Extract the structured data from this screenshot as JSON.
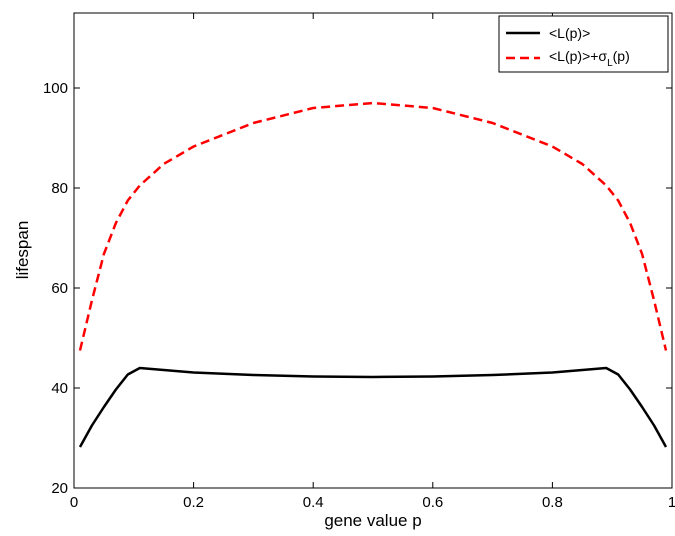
{
  "chart_data": {
    "type": "line",
    "title": "",
    "xlabel": "gene value p",
    "ylabel": "lifespan",
    "xlim": [
      0,
      1
    ],
    "ylim": [
      20,
      115
    ],
    "xticks": [
      0,
      0.2,
      0.4,
      0.6,
      0.8,
      1
    ],
    "xtick_labels": [
      "0",
      "0.2",
      "0.4",
      "0.6",
      "0.8",
      "1"
    ],
    "yticks": [
      20,
      40,
      60,
      80,
      100
    ],
    "ytick_labels": [
      "20",
      "40",
      "60",
      "80",
      "100"
    ],
    "grid": false,
    "legend_position": "top-right",
    "series": [
      {
        "name": "<L(p)>",
        "color": "#000000",
        "style": "solid",
        "x": [
          0.01,
          0.03,
          0.05,
          0.07,
          0.09,
          0.11,
          0.15,
          0.2,
          0.3,
          0.4,
          0.5,
          0.6,
          0.7,
          0.8,
          0.85,
          0.89,
          0.91,
          0.93,
          0.95,
          0.97,
          0.99
        ],
        "y": [
          28.2,
          32.5,
          36.2,
          39.7,
          42.7,
          44.0,
          43.6,
          43.1,
          42.6,
          42.3,
          42.2,
          42.3,
          42.6,
          43.1,
          43.6,
          44.0,
          42.7,
          39.7,
          36.2,
          32.5,
          28.2
        ]
      },
      {
        "name": "<L(p)>+σ_L(p)",
        "legend_main": "<L(p)>+σ",
        "legend_sub": "L",
        "legend_tail": "(p)",
        "color": "#ff0000",
        "style": "dashed",
        "x": [
          0.01,
          0.03,
          0.05,
          0.07,
          0.09,
          0.11,
          0.15,
          0.2,
          0.3,
          0.4,
          0.5,
          0.6,
          0.7,
          0.8,
          0.85,
          0.89,
          0.91,
          0.93,
          0.95,
          0.97,
          0.99
        ],
        "y": [
          47.5,
          57.5,
          66.8,
          73.0,
          77.5,
          80.5,
          84.8,
          88.3,
          93.0,
          96.0,
          97.0,
          96.0,
          93.0,
          88.3,
          84.8,
          80.5,
          77.5,
          73.0,
          66.8,
          57.5,
          47.5
        ]
      }
    ]
  }
}
